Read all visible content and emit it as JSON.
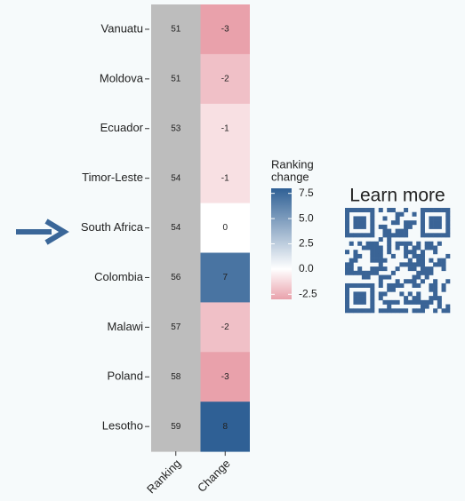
{
  "chart_data": {
    "type": "heatmap",
    "categories": [
      "Vanuatu",
      "Moldova",
      "Ecuador",
      "Timor-Leste",
      "South Africa",
      "Colombia",
      "Malawi",
      "Poland",
      "Lesotho"
    ],
    "columns": [
      "Ranking",
      "Change"
    ],
    "ranking": [
      51,
      51,
      53,
      54,
      54,
      56,
      57,
      58,
      59
    ],
    "change": [
      -3,
      -2,
      -1,
      -1,
      0,
      7,
      -2,
      -3,
      8
    ],
    "ranking_color": "#bdbdbd",
    "colors": {
      "low": "#e9a1ab",
      "mid": "#ffffff",
      "high": "#2f6095"
    },
    "legend_title": [
      "Ranking",
      "change"
    ],
    "clim": [
      -3,
      8
    ],
    "cticks": [
      7.5,
      {
        "value": 5,
        "label": "5.0"
      },
      2.5,
      {
        "value": 0,
        "label": "0.0"
      },
      -2.5
    ],
    "annotation": "Learn more"
  }
}
